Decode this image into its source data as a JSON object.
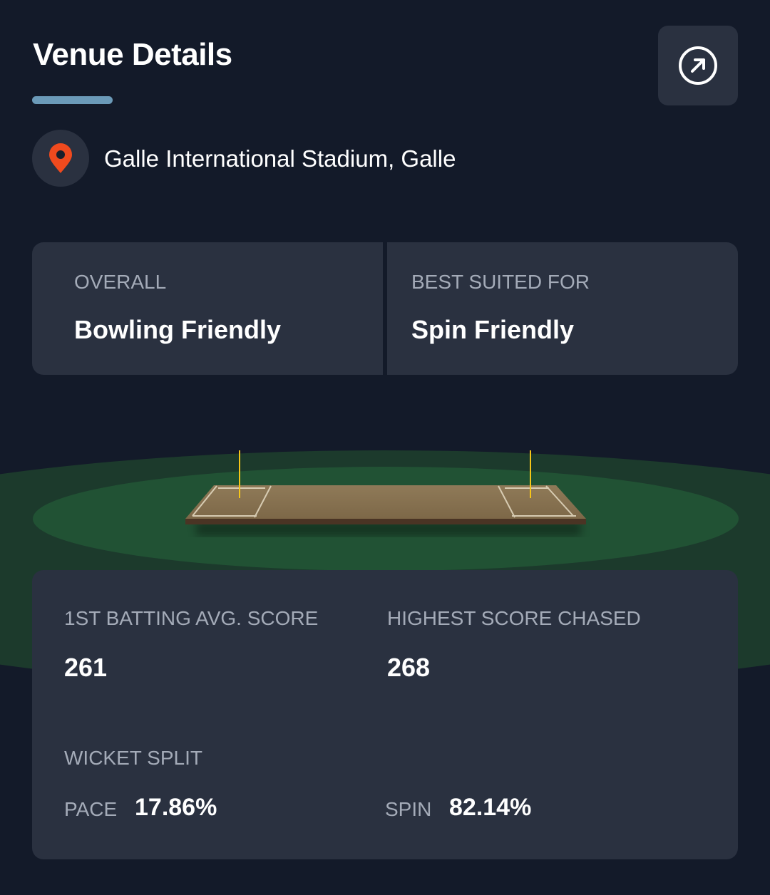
{
  "header": {
    "title": "Venue Details",
    "open_icon": "arrow-up-right-circle-icon"
  },
  "venue": {
    "name": "Galle International Stadium, Galle",
    "icon": "map-pin-icon",
    "pin_color": "#f04a1e"
  },
  "pitch_summary": {
    "overall": {
      "label": "OVERALL",
      "value": "Bowling Friendly"
    },
    "best_suited": {
      "label": "BEST SUITED FOR",
      "value": "Spin Friendly"
    }
  },
  "stats": {
    "first_batting_avg": {
      "label": "1ST BATTING AVG. SCORE",
      "value": "261"
    },
    "highest_chased": {
      "label": "HIGHEST SCORE CHASED",
      "value": "268"
    },
    "wicket_split": {
      "label": "WICKET SPLIT",
      "pace": {
        "label": "PACE",
        "value": "17.86%"
      },
      "spin": {
        "label": "SPIN",
        "value": "82.14%"
      }
    }
  },
  "colors": {
    "background": "#131a29",
    "card": "#2a3140",
    "accent": "#6b9ab8",
    "field_outer": "#1c3a2c",
    "field_inner": "#215234",
    "marker": "#f5c518"
  }
}
